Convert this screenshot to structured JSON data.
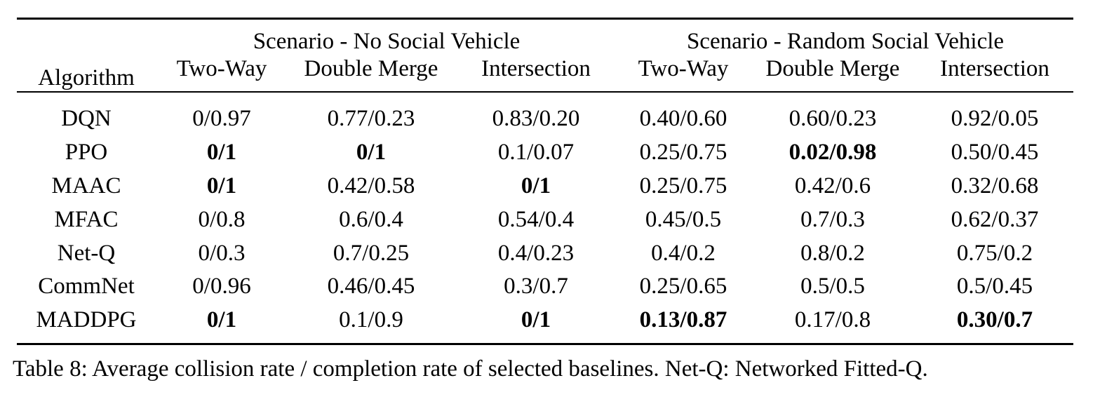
{
  "table": {
    "algorithm_header": "Algorithm",
    "groups": [
      "Scenario - No Social Vehicle",
      "Scenario - Random Social Vehicle"
    ],
    "subheaders": [
      "Two-Way",
      "Double Merge",
      "Intersection",
      "Two-Way",
      "Double Merge",
      "Intersection"
    ],
    "rows": [
      {
        "name": "DQN",
        "cells": [
          {
            "v": "0/0.97",
            "bold": false
          },
          {
            "v": "0.77/0.23",
            "bold": false
          },
          {
            "v": "0.83/0.20",
            "bold": false
          },
          {
            "v": "0.40/0.60",
            "bold": false
          },
          {
            "v": "0.60/0.23",
            "bold": false
          },
          {
            "v": "0.92/0.05",
            "bold": false
          }
        ]
      },
      {
        "name": "PPO",
        "cells": [
          {
            "v": "0/1",
            "bold": true
          },
          {
            "v": "0/1",
            "bold": true
          },
          {
            "v": "0.1/0.07",
            "bold": false
          },
          {
            "v": "0.25/0.75",
            "bold": false
          },
          {
            "v": "0.02/0.98",
            "bold": true
          },
          {
            "v": "0.50/0.45",
            "bold": false
          }
        ]
      },
      {
        "name": "MAAC",
        "cells": [
          {
            "v": "0/1",
            "bold": true
          },
          {
            "v": "0.42/0.58",
            "bold": false
          },
          {
            "v": "0/1",
            "bold": true
          },
          {
            "v": "0.25/0.75",
            "bold": false
          },
          {
            "v": "0.42/0.6",
            "bold": false
          },
          {
            "v": "0.32/0.68",
            "bold": false
          }
        ]
      },
      {
        "name": "MFAC",
        "cells": [
          {
            "v": "0/0.8",
            "bold": false
          },
          {
            "v": "0.6/0.4",
            "bold": false
          },
          {
            "v": "0.54/0.4",
            "bold": false
          },
          {
            "v": "0.45/0.5",
            "bold": false
          },
          {
            "v": "0.7/0.3",
            "bold": false
          },
          {
            "v": "0.62/0.37",
            "bold": false
          }
        ]
      },
      {
        "name": "Net-Q",
        "cells": [
          {
            "v": "0/0.3",
            "bold": false
          },
          {
            "v": "0.7/0.25",
            "bold": false
          },
          {
            "v": "0.4/0.23",
            "bold": false
          },
          {
            "v": "0.4/0.2",
            "bold": false
          },
          {
            "v": "0.8/0.2",
            "bold": false
          },
          {
            "v": "0.75/0.2",
            "bold": false
          }
        ]
      },
      {
        "name": "CommNet",
        "cells": [
          {
            "v": "0/0.96",
            "bold": false
          },
          {
            "v": "0.46/0.45",
            "bold": false
          },
          {
            "v": "0.3/0.7",
            "bold": false
          },
          {
            "v": "0.25/0.65",
            "bold": false
          },
          {
            "v": "0.5/0.5",
            "bold": false
          },
          {
            "v": "0.5/0.45",
            "bold": false
          }
        ]
      },
      {
        "name": "MADDPG",
        "cells": [
          {
            "v": "0/1",
            "bold": true
          },
          {
            "v": "0.1/0.9",
            "bold": false
          },
          {
            "v": "0/1",
            "bold": true
          },
          {
            "v": "0.13/0.87",
            "bold": true
          },
          {
            "v": "0.17/0.8",
            "bold": false
          },
          {
            "v": "0.30/0.7",
            "bold": true
          }
        ]
      }
    ]
  },
  "caption": "Table 8: Average collision rate / completion rate of selected baselines. Net-Q: Networked Fitted-Q."
}
